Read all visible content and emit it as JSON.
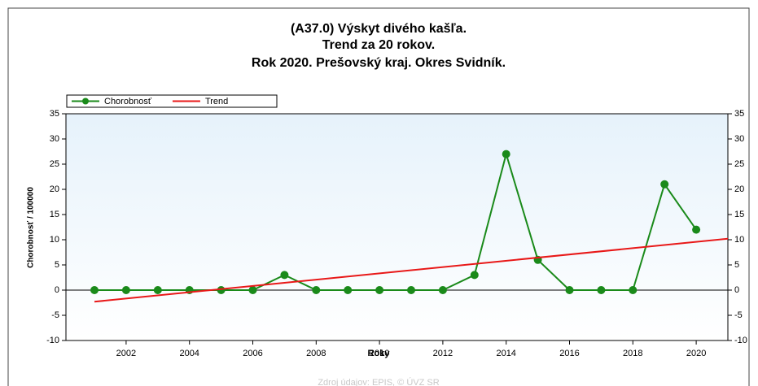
{
  "chart_data": {
    "type": "line",
    "title": [
      "(A37.0) Výskyt divého kašľa.",
      "Trend za 20 rokov.",
      "Rok 2020. Prešovský kraj. Okres Svidník."
    ],
    "x_label": "Roky",
    "y_label": "Chorobnosť / 100000",
    "source": "Zdroj údajov: EPIS, © ÚVZ SR",
    "x": [
      2001,
      2002,
      2003,
      2004,
      2005,
      2006,
      2007,
      2008,
      2009,
      2010,
      2011,
      2012,
      2013,
      2014,
      2015,
      2016,
      2017,
      2018,
      2019,
      2020
    ],
    "series": [
      {
        "name": "Chorobnosť",
        "color": "#1a8a1a",
        "values": [
          0,
          0,
          0,
          0,
          0,
          0,
          3,
          0,
          0,
          0,
          0,
          0,
          3,
          27,
          6,
          0,
          0,
          0,
          21,
          12
        ]
      },
      {
        "name": "Trend",
        "color": "#e81818",
        "x": [
          2001,
          2021
        ],
        "values": [
          -2.3,
          10.2
        ]
      }
    ],
    "xlim": [
      2000.1,
      2021
    ],
    "xticks": [
      2002,
      2004,
      2006,
      2008,
      2010,
      2012,
      2014,
      2016,
      2018,
      2020
    ],
    "ylim": [
      -10,
      35
    ],
    "yticks": [
      -10,
      -5,
      0,
      5,
      10,
      15,
      20,
      25,
      30,
      35
    ],
    "y2lim": [
      -10,
      35
    ],
    "y2ticks": [
      -10,
      -5,
      0,
      5,
      10,
      15,
      20,
      25,
      30,
      35
    ],
    "legend": "top-left"
  }
}
